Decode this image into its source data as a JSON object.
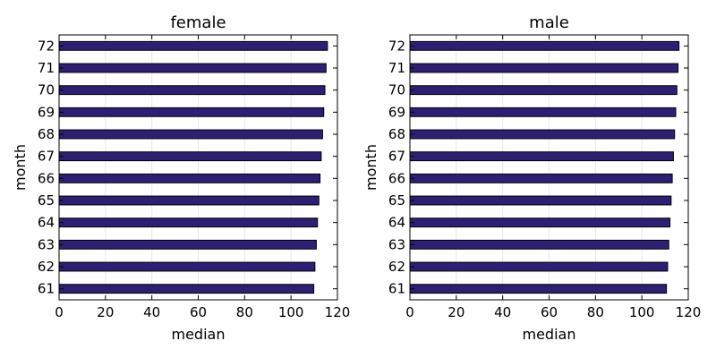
{
  "chart_data": [
    {
      "type": "bar",
      "orientation": "horizontal",
      "title": "female",
      "xlabel": "median",
      "ylabel": "month",
      "xlim": [
        0,
        120
      ],
      "xticks": [
        0,
        20,
        40,
        60,
        80,
        100,
        120
      ],
      "grid": true,
      "categories": [
        "61",
        "62",
        "63",
        "64",
        "65",
        "66",
        "67",
        "68",
        "69",
        "70",
        "71",
        "72"
      ],
      "values": [
        109.8,
        110.3,
        110.9,
        111.4,
        112.0,
        112.5,
        113.0,
        113.6,
        114.1,
        114.6,
        115.1,
        115.7
      ],
      "bar_color": "#2e1f74"
    },
    {
      "type": "bar",
      "orientation": "horizontal",
      "title": "male",
      "xlabel": "median",
      "ylabel": "month",
      "xlim": [
        0,
        120
      ],
      "xticks": [
        0,
        20,
        40,
        60,
        80,
        100,
        120
      ],
      "grid": true,
      "categories": [
        "61",
        "62",
        "63",
        "64",
        "65",
        "66",
        "67",
        "68",
        "69",
        "70",
        "71",
        "72"
      ],
      "values": [
        110.6,
        111.1,
        111.6,
        112.1,
        112.6,
        113.1,
        113.6,
        114.1,
        114.6,
        115.1,
        115.6,
        116.0
      ],
      "bar_color": "#2e1f74"
    }
  ]
}
